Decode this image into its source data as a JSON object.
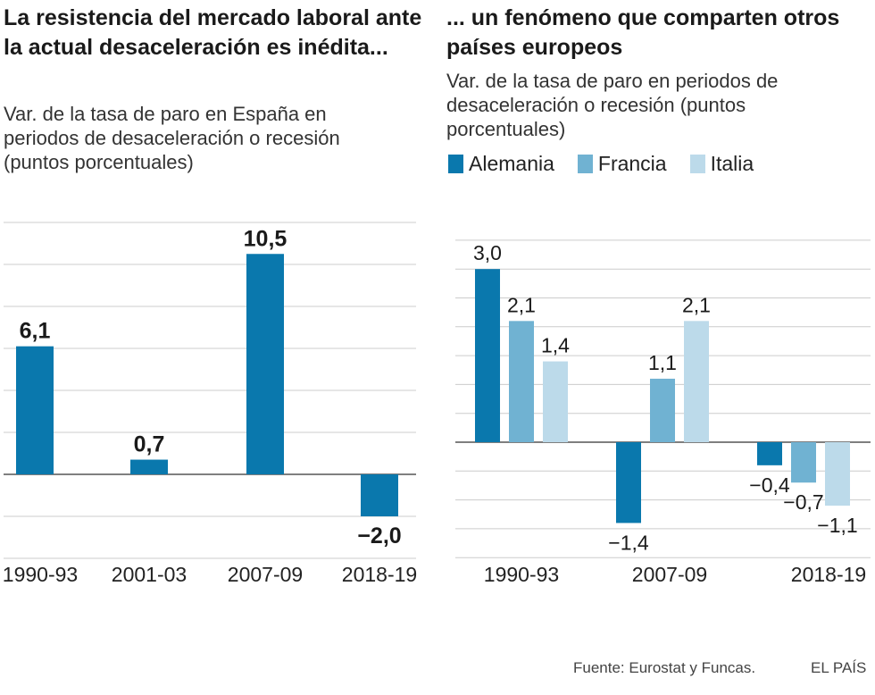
{
  "left": {
    "title": "La resistencia del mercado laboral ante la actual desaceleración es inédita...",
    "subtitle": "Var. de la tasa de paro en España en periodos de desaceleración o recesión (puntos porcentuales)"
  },
  "right": {
    "title": "... un fenómeno que comparten otros países europeos",
    "subtitle": "Var. de la tasa de paro en periodos de desaceleración o recesión (puntos porcentuales)"
  },
  "footer": {
    "source": "Fuente: Eurostat y Funcas.",
    "brand": "EL PAÍS"
  },
  "chart_data": [
    {
      "type": "bar",
      "title": "La resistencia del mercado laboral ante la actual desaceleración es inédita...",
      "subtitle": "Var. de la tasa de paro en España en periodos de desaceleración o recesión (puntos porcentuales)",
      "categories": [
        "1990-93",
        "2001-03",
        "2007-09",
        "2018-19"
      ],
      "values": [
        6.1,
        0.7,
        10.5,
        -2.0
      ],
      "value_labels": [
        "6,1",
        "0,7",
        "10,5",
        "−2,0"
      ],
      "ylim": [
        -4,
        12
      ],
      "grid": true,
      "color": "#0a78ad"
    },
    {
      "type": "bar",
      "title": "... un fenómeno que comparten otros países europeos",
      "subtitle": "Var. de la tasa de paro en periodos de desaceleración o recesión (puntos porcentuales)",
      "categories": [
        "1990-93",
        "2007-09",
        "2018-19"
      ],
      "series": [
        {
          "name": "Alemania",
          "color": "#0a78ad",
          "values": [
            3.0,
            -1.4,
            -0.4
          ],
          "labels": [
            "3,0",
            "−1,4",
            "−0,4"
          ]
        },
        {
          "name": "Francia",
          "color": "#70b2d2",
          "values": [
            2.1,
            1.1,
            -0.7
          ],
          "labels": [
            "2,1",
            "1,1",
            "−0,7"
          ]
        },
        {
          "name": "Italia",
          "color": "#bcdaea",
          "values": [
            1.4,
            2.1,
            -1.1
          ],
          "labels": [
            "1,4",
            "2,1",
            "−1,1"
          ]
        }
      ],
      "ylim": [
        -2,
        3.5
      ],
      "grid": true,
      "legend": "top"
    }
  ]
}
